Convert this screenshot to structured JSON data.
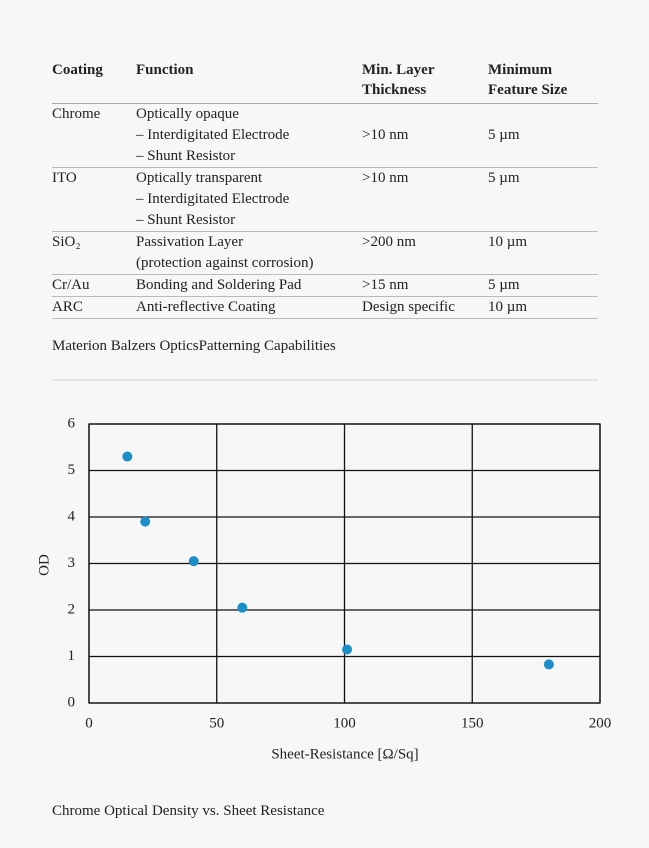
{
  "table": {
    "header": [
      "Coating",
      "Function",
      "Min. Layer Thickness",
      "Minimum Feature Size"
    ],
    "rows": [
      [
        "Chrome",
        [
          "Optically opaque",
          "– Interdigitated Electrode",
          "– Shunt Resistor"
        ],
        ">10 nm",
        "5 µm"
      ],
      [
        "ITO",
        [
          "Optically transparent",
          "– Interdigitated Electrode",
          "– Shunt Resistor"
        ],
        ">10 nm",
        "5 µm"
      ],
      [
        "SiO₂",
        [
          "Passivation Layer",
          "(protection against corrosion)"
        ],
        ">200 nm",
        "10 µm"
      ],
      [
        "Cr/Au",
        [
          "Bonding and Soldering Pad"
        ],
        ">15 nm",
        "5 µm"
      ],
      [
        "ARC",
        [
          "Anti-reflective Coating"
        ],
        "Design specific",
        "10 µm"
      ]
    ],
    "caption": "Materion Balzers OpticsPatterning Capabilities"
  },
  "chart_data": {
    "type": "scatter",
    "xlabel": "Sheet-Resistance [Ω/Sq]",
    "ylabel": "OD",
    "x": [
      15,
      22,
      41,
      60,
      101,
      180
    ],
    "values": [
      5.3,
      3.9,
      3.05,
      2.05,
      1.15,
      0.83
    ],
    "color": "#1a8fc9",
    "xlim": [
      0,
      200
    ],
    "ylim": [
      0,
      6
    ],
    "xticks": [
      0,
      50,
      100,
      150,
      200
    ],
    "yticks": [
      0,
      1,
      2,
      3,
      4,
      5,
      6
    ],
    "grid": true,
    "caption": "Chrome Optical Density vs. Sheet Resistance"
  }
}
